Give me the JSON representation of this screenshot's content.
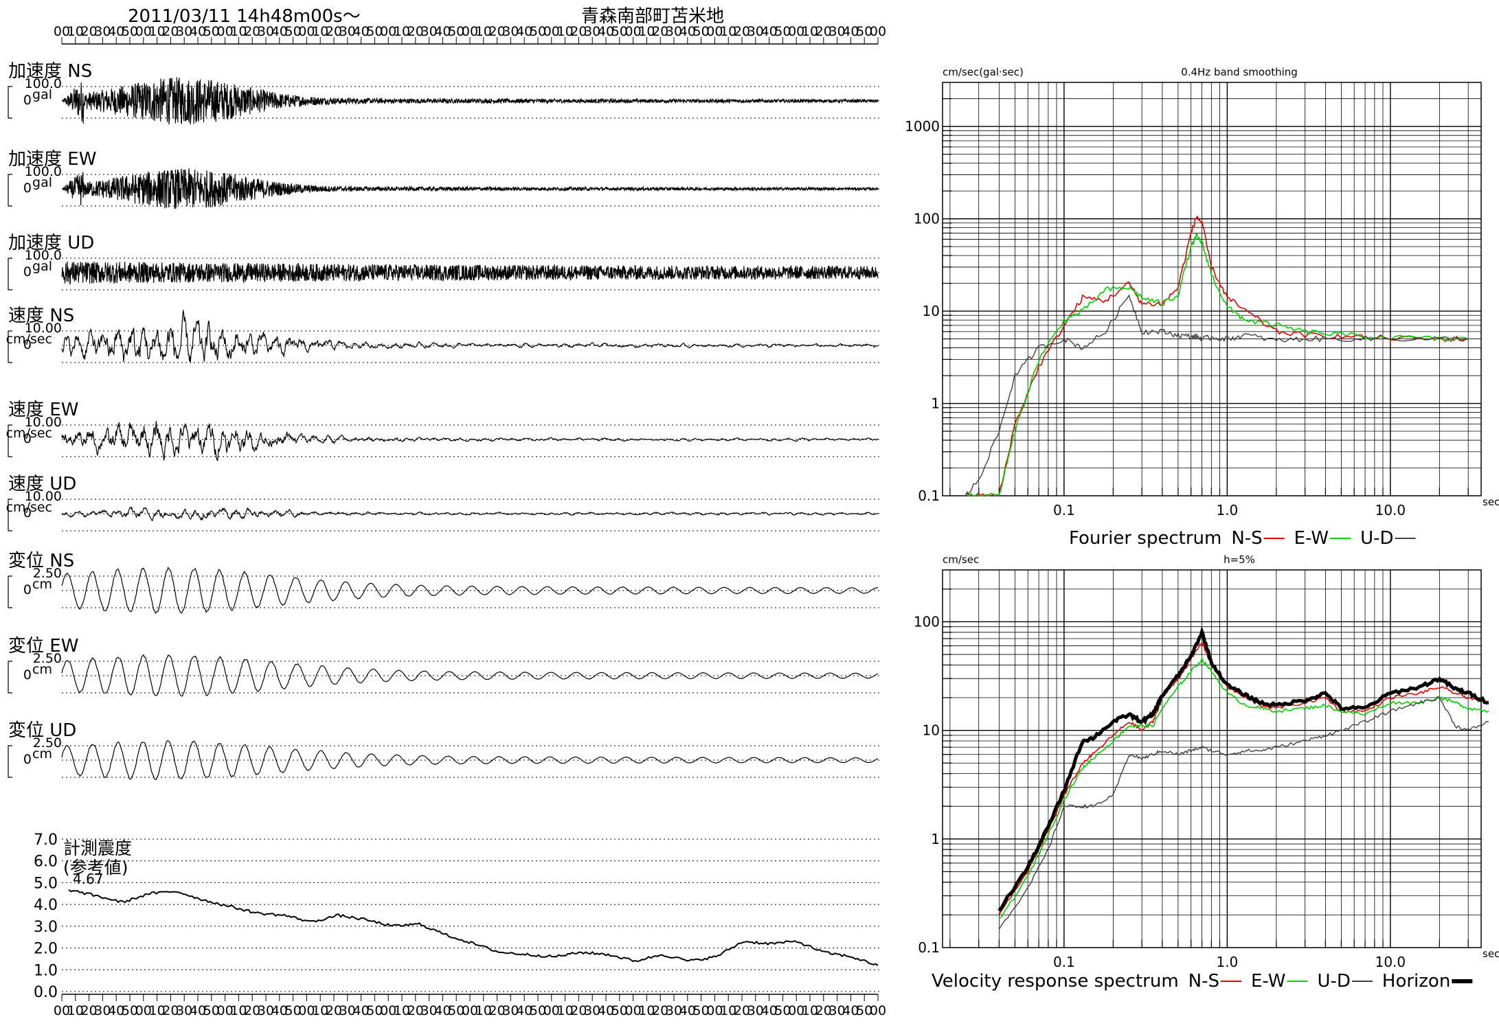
{
  "header": {
    "datetime": "2011/03/11 14h48m00s〜",
    "station": "青森南部町苫米地",
    "time_ticks": [
      "00",
      "10",
      "20",
      "30",
      "40",
      "50",
      "00",
      "10",
      "20",
      "30",
      "40",
      "50",
      "00",
      "10",
      "20",
      "30",
      "40",
      "50",
      "00",
      "10",
      "20",
      "30",
      "40",
      "50",
      "00",
      "10",
      "20",
      "30",
      "40",
      "50",
      "00",
      "10",
      "20",
      "30",
      "40",
      "50",
      "00",
      "10",
      "20",
      "30",
      "40",
      "50",
      "00",
      "10",
      "20",
      "30",
      "40",
      "50",
      "00",
      "10",
      "20",
      "30",
      "40",
      "50",
      "00",
      "10",
      "20",
      "30",
      "40",
      "50",
      "00"
    ]
  },
  "traces": [
    {
      "label": "加速度 NS",
      "scale": "100.0",
      "unit": "gal",
      "zero": "0",
      "kind": "acc",
      "amp": 1.0
    },
    {
      "label": "加速度 EW",
      "scale": "100.0",
      "unit": "gal",
      "zero": "0",
      "kind": "acc",
      "amp": 0.85
    },
    {
      "label": "加速度 UD",
      "scale": "100.0",
      "unit": "gal",
      "zero": "0",
      "kind": "accud",
      "amp": 0.5
    },
    {
      "label": "速度 NS",
      "scale": "10.00",
      "unit": "cm/sec",
      "zero": "0",
      "kind": "vel",
      "amp": 1.0
    },
    {
      "label": "速度 EW",
      "scale": "10.00",
      "unit": "cm/sec",
      "zero": "0",
      "kind": "vel",
      "amp": 0.8
    },
    {
      "label": "速度 UD",
      "scale": "10.00",
      "unit": "cm/sec",
      "zero": "0",
      "kind": "velud",
      "amp": 0.5
    },
    {
      "label": "変位 NS",
      "scale": "2.50",
      "unit": "cm",
      "zero": "0",
      "kind": "disp",
      "amp": 1.0
    },
    {
      "label": "変位 EW",
      "scale": "2.50",
      "unit": "cm",
      "zero": "0",
      "kind": "disp",
      "amp": 0.9
    },
    {
      "label": "変位 UD",
      "scale": "2.50",
      "unit": "cm",
      "zero": "0",
      "kind": "disp",
      "amp": 0.85
    }
  ],
  "intensity": {
    "title": "計測震度",
    "subtitle": "(参考値)",
    "max_value": "4.67",
    "y_ticks": [
      "7.0",
      "6.0",
      "5.0",
      "4.0",
      "3.0",
      "2.0",
      "1.0",
      "0.0"
    ],
    "ylim": [
      0,
      7
    ]
  },
  "fourier": {
    "ylabel": "cm/sec(gal·sec)",
    "note": "0.4Hz band smoothing",
    "x_unit": "sec",
    "x_ticks": [
      "0.1",
      "1.0",
      "10.0"
    ],
    "y_ticks": [
      "1000",
      "100",
      "10",
      "1",
      "0.1"
    ],
    "legend_title": "Fourier spectrum",
    "legend": [
      "N-S",
      "E-W",
      "U-D"
    ]
  },
  "response": {
    "ylabel": "cm/sec",
    "note": "h=5%",
    "x_unit": "sec",
    "x_ticks": [
      "0.1",
      "1.0",
      "10.0"
    ],
    "y_ticks": [
      "100",
      "10",
      "1",
      "0.1"
    ],
    "legend_title": "Velocity response spectrum",
    "legend": [
      "N-S",
      "E-W",
      "U-D",
      "Horizon"
    ]
  },
  "colors": {
    "ns": "#e00000",
    "ew": "#00d000",
    "ud": "#404040",
    "horizon": "#000000"
  },
  "chart_data": [
    {
      "type": "line",
      "title": "計測震度",
      "x": [
        0,
        10,
        20,
        30,
        40,
        50,
        60,
        70,
        80,
        90,
        100,
        110,
        120,
        130,
        140,
        150,
        160,
        170,
        180,
        190,
        200,
        210,
        220,
        230,
        240,
        250,
        260,
        270,
        280,
        290,
        300
      ],
      "values": [
        4.67,
        4.4,
        4.1,
        4.5,
        4.6,
        4.2,
        3.9,
        3.6,
        3.5,
        3.2,
        3.5,
        3.3,
        3.0,
        3.1,
        2.6,
        2.2,
        1.8,
        1.7,
        1.6,
        1.8,
        1.7,
        1.4,
        1.7,
        1.4,
        1.6,
        2.3,
        2.2,
        2.3,
        1.8,
        1.6,
        1.2
      ],
      "ylim": [
        0,
        7
      ]
    },
    {
      "type": "line",
      "title": "Fourier spectrum",
      "xlabel": "sec",
      "ylabel": "cm/sec(gal·sec)",
      "x": [
        0.025,
        0.03,
        0.04,
        0.05,
        0.07,
        0.1,
        0.13,
        0.18,
        0.25,
        0.3,
        0.4,
        0.5,
        0.6,
        0.65,
        0.7,
        0.8,
        1.0,
        1.3,
        2.0,
        3.0,
        5.0,
        10,
        20,
        30
      ],
      "series": [
        {
          "name": "N-S",
          "values": [
            0.1,
            0.1,
            0.1,
            0.6,
            2.5,
            7,
            14,
            13,
            20,
            12,
            12,
            18,
            70,
            105,
            90,
            30,
            14,
            10,
            6,
            5.5,
            5.3,
            5.1,
            5,
            5
          ]
        },
        {
          "name": "E-W",
          "values": [
            0.1,
            0.1,
            0.1,
            0.5,
            3,
            8,
            10,
            17,
            18,
            14,
            12,
            15,
            50,
            65,
            55,
            25,
            11,
            8,
            7,
            6,
            5.5,
            5.2,
            5,
            5
          ]
        },
        {
          "name": "U-D",
          "values": [
            0.1,
            0.15,
            0.5,
            2,
            4,
            5,
            4,
            6,
            15,
            6,
            6,
            5.5,
            5.3,
            5.3,
            5,
            5.2,
            5,
            5.5,
            4.8,
            5,
            5,
            5,
            5,
            5
          ]
        }
      ]
    },
    {
      "type": "line",
      "title": "Velocity response spectrum",
      "xlabel": "sec",
      "ylabel": "cm/sec",
      "x": [
        0.04,
        0.06,
        0.08,
        0.1,
        0.13,
        0.15,
        0.2,
        0.25,
        0.3,
        0.35,
        0.4,
        0.5,
        0.6,
        0.7,
        0.8,
        1.0,
        1.3,
        1.6,
        2.0,
        3.0,
        4.0,
        5.0,
        7.0,
        10,
        15,
        20,
        25,
        30,
        40
      ],
      "series": [
        {
          "name": "N-S",
          "values": [
            0.2,
            0.5,
            1.2,
            2.5,
            5,
            6,
            9,
            12,
            10,
            12,
            20,
            30,
            45,
            65,
            40,
            25,
            20,
            17,
            16,
            18,
            20,
            15,
            15,
            20,
            22,
            25,
            22,
            20,
            18
          ]
        },
        {
          "name": "E-W",
          "values": [
            0.18,
            0.45,
            1.1,
            2.3,
            4.5,
            5.5,
            8,
            11,
            11,
            11,
            16,
            25,
            35,
            45,
            35,
            22,
            17,
            16,
            15,
            16,
            17,
            15,
            14,
            18,
            18,
            20,
            18,
            16,
            15
          ]
        },
        {
          "name": "U-D",
          "values": [
            0.15,
            0.35,
            0.8,
            2,
            2,
            2,
            2.5,
            6,
            5.5,
            6,
            6.5,
            6,
            6.5,
            7,
            6.5,
            6,
            6.5,
            6.5,
            7,
            8,
            9,
            10,
            12,
            15,
            18,
            20,
            11,
            10,
            12
          ]
        },
        {
          "name": "Horizon",
          "values": [
            0.22,
            0.55,
            1.3,
            2.8,
            8,
            8.5,
            12,
            14,
            12,
            14,
            21,
            32,
            48,
            80,
            42,
            26,
            21,
            18,
            17,
            19,
            22,
            16,
            16,
            22,
            25,
            30,
            24,
            22,
            18
          ]
        }
      ]
    }
  ]
}
